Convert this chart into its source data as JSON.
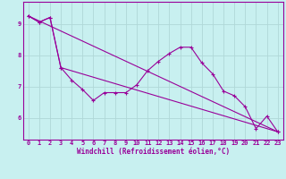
{
  "xlabel": "Windchill (Refroidissement éolien,°C)",
  "background_color": "#c8f0f0",
  "grid_color": "#b0d8d8",
  "line_color": "#990099",
  "line1_x": [
    0,
    1,
    2,
    3,
    4,
    5,
    6,
    7,
    8,
    9,
    10,
    11,
    12,
    13,
    14,
    15,
    16,
    17,
    18,
    19,
    20,
    21,
    22,
    23
  ],
  "line1_y": [
    9.25,
    9.05,
    9.2,
    7.6,
    7.2,
    6.9,
    6.55,
    6.8,
    6.8,
    6.8,
    7.05,
    7.5,
    7.8,
    8.05,
    8.25,
    8.25,
    7.75,
    7.4,
    6.85,
    6.7,
    6.35,
    5.65,
    6.05,
    5.55
  ],
  "line2_x": [
    0,
    1,
    2,
    3,
    23
  ],
  "line2_y": [
    9.25,
    9.05,
    9.2,
    7.6,
    5.55
  ],
  "line3_x": [
    0,
    23
  ],
  "line3_y": [
    9.25,
    5.55
  ],
  "ylim": [
    5.3,
    9.7
  ],
  "xlim": [
    -0.5,
    23.5
  ],
  "yticks": [
    6,
    7,
    8,
    9
  ],
  "xticks": [
    0,
    1,
    2,
    3,
    4,
    5,
    6,
    7,
    8,
    9,
    10,
    11,
    12,
    13,
    14,
    15,
    16,
    17,
    18,
    19,
    20,
    21,
    22,
    23
  ],
  "tick_fontsize": 5.0,
  "xlabel_fontsize": 5.5
}
